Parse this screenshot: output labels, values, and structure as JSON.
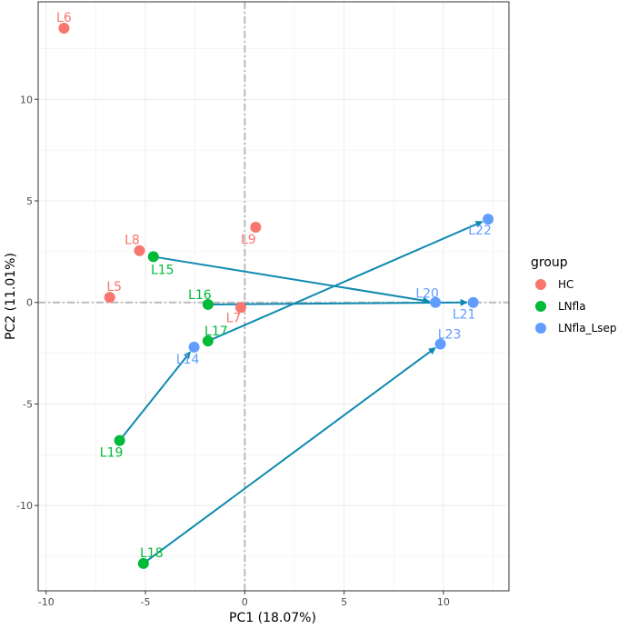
{
  "chart_data": {
    "type": "scatter",
    "xlabel": "PC1 (18.07%)",
    "ylabel": "PC2 (11.01%)",
    "xlim": [
      -10.4,
      13.3
    ],
    "ylim": [
      -14.2,
      14.8
    ],
    "xticks": [
      -10,
      -5,
      0,
      5,
      10
    ],
    "yticks": [
      -10,
      -5,
      0,
      5,
      10
    ],
    "grid": true,
    "legend": {
      "title": "group",
      "placement": "right",
      "entries": [
        {
          "name": "HC",
          "color": "#F8766D"
        },
        {
          "name": "LNfla",
          "color": "#00BA38"
        },
        {
          "name": "LNfla_Lsep",
          "color": "#619CFF"
        }
      ]
    },
    "arrow_color": "#0E8AB0",
    "points": [
      {
        "label": "L6",
        "group": "HC",
        "x": -9.1,
        "y": 13.5
      },
      {
        "label": "L8",
        "group": "HC",
        "x": -5.3,
        "y": 2.55
      },
      {
        "label": "L9",
        "group": "HC",
        "x": 0.55,
        "y": 3.7
      },
      {
        "label": "L5",
        "group": "HC",
        "x": -6.8,
        "y": 0.25
      },
      {
        "label": "L7",
        "group": "HC",
        "x": -0.2,
        "y": -0.25
      },
      {
        "label": "L15",
        "group": "LNfla",
        "x": -4.6,
        "y": 2.25
      },
      {
        "label": "L16",
        "group": "LNfla",
        "x": -1.85,
        "y": -0.1
      },
      {
        "label": "L17",
        "group": "LNfla",
        "x": -1.85,
        "y": -1.9
      },
      {
        "label": "L19",
        "group": "LNfla",
        "x": -6.3,
        "y": -6.8
      },
      {
        "label": "L18",
        "group": "LNfla",
        "x": -5.1,
        "y": -12.85
      },
      {
        "label": "L14",
        "group": "LNfla_Lsep",
        "x": -2.55,
        "y": -2.2
      },
      {
        "label": "L20",
        "group": "LNfla_Lsep",
        "x": 9.6,
        "y": 0
      },
      {
        "label": "L21",
        "group": "LNfla_Lsep",
        "x": 11.5,
        "y": 0
      },
      {
        "label": "L22",
        "group": "LNfla_Lsep",
        "x": 12.25,
        "y": 4.1
      },
      {
        "label": "L23",
        "group": "LNfla_Lsep",
        "x": 9.85,
        "y": -2.05
      }
    ],
    "arrows": [
      {
        "from": "L15",
        "to": "L20"
      },
      {
        "from": "L16",
        "to": "L21"
      },
      {
        "from": "L17",
        "to": "L22"
      },
      {
        "from": "L19",
        "to": "L14"
      },
      {
        "from": "L18",
        "to": "L23"
      }
    ]
  }
}
